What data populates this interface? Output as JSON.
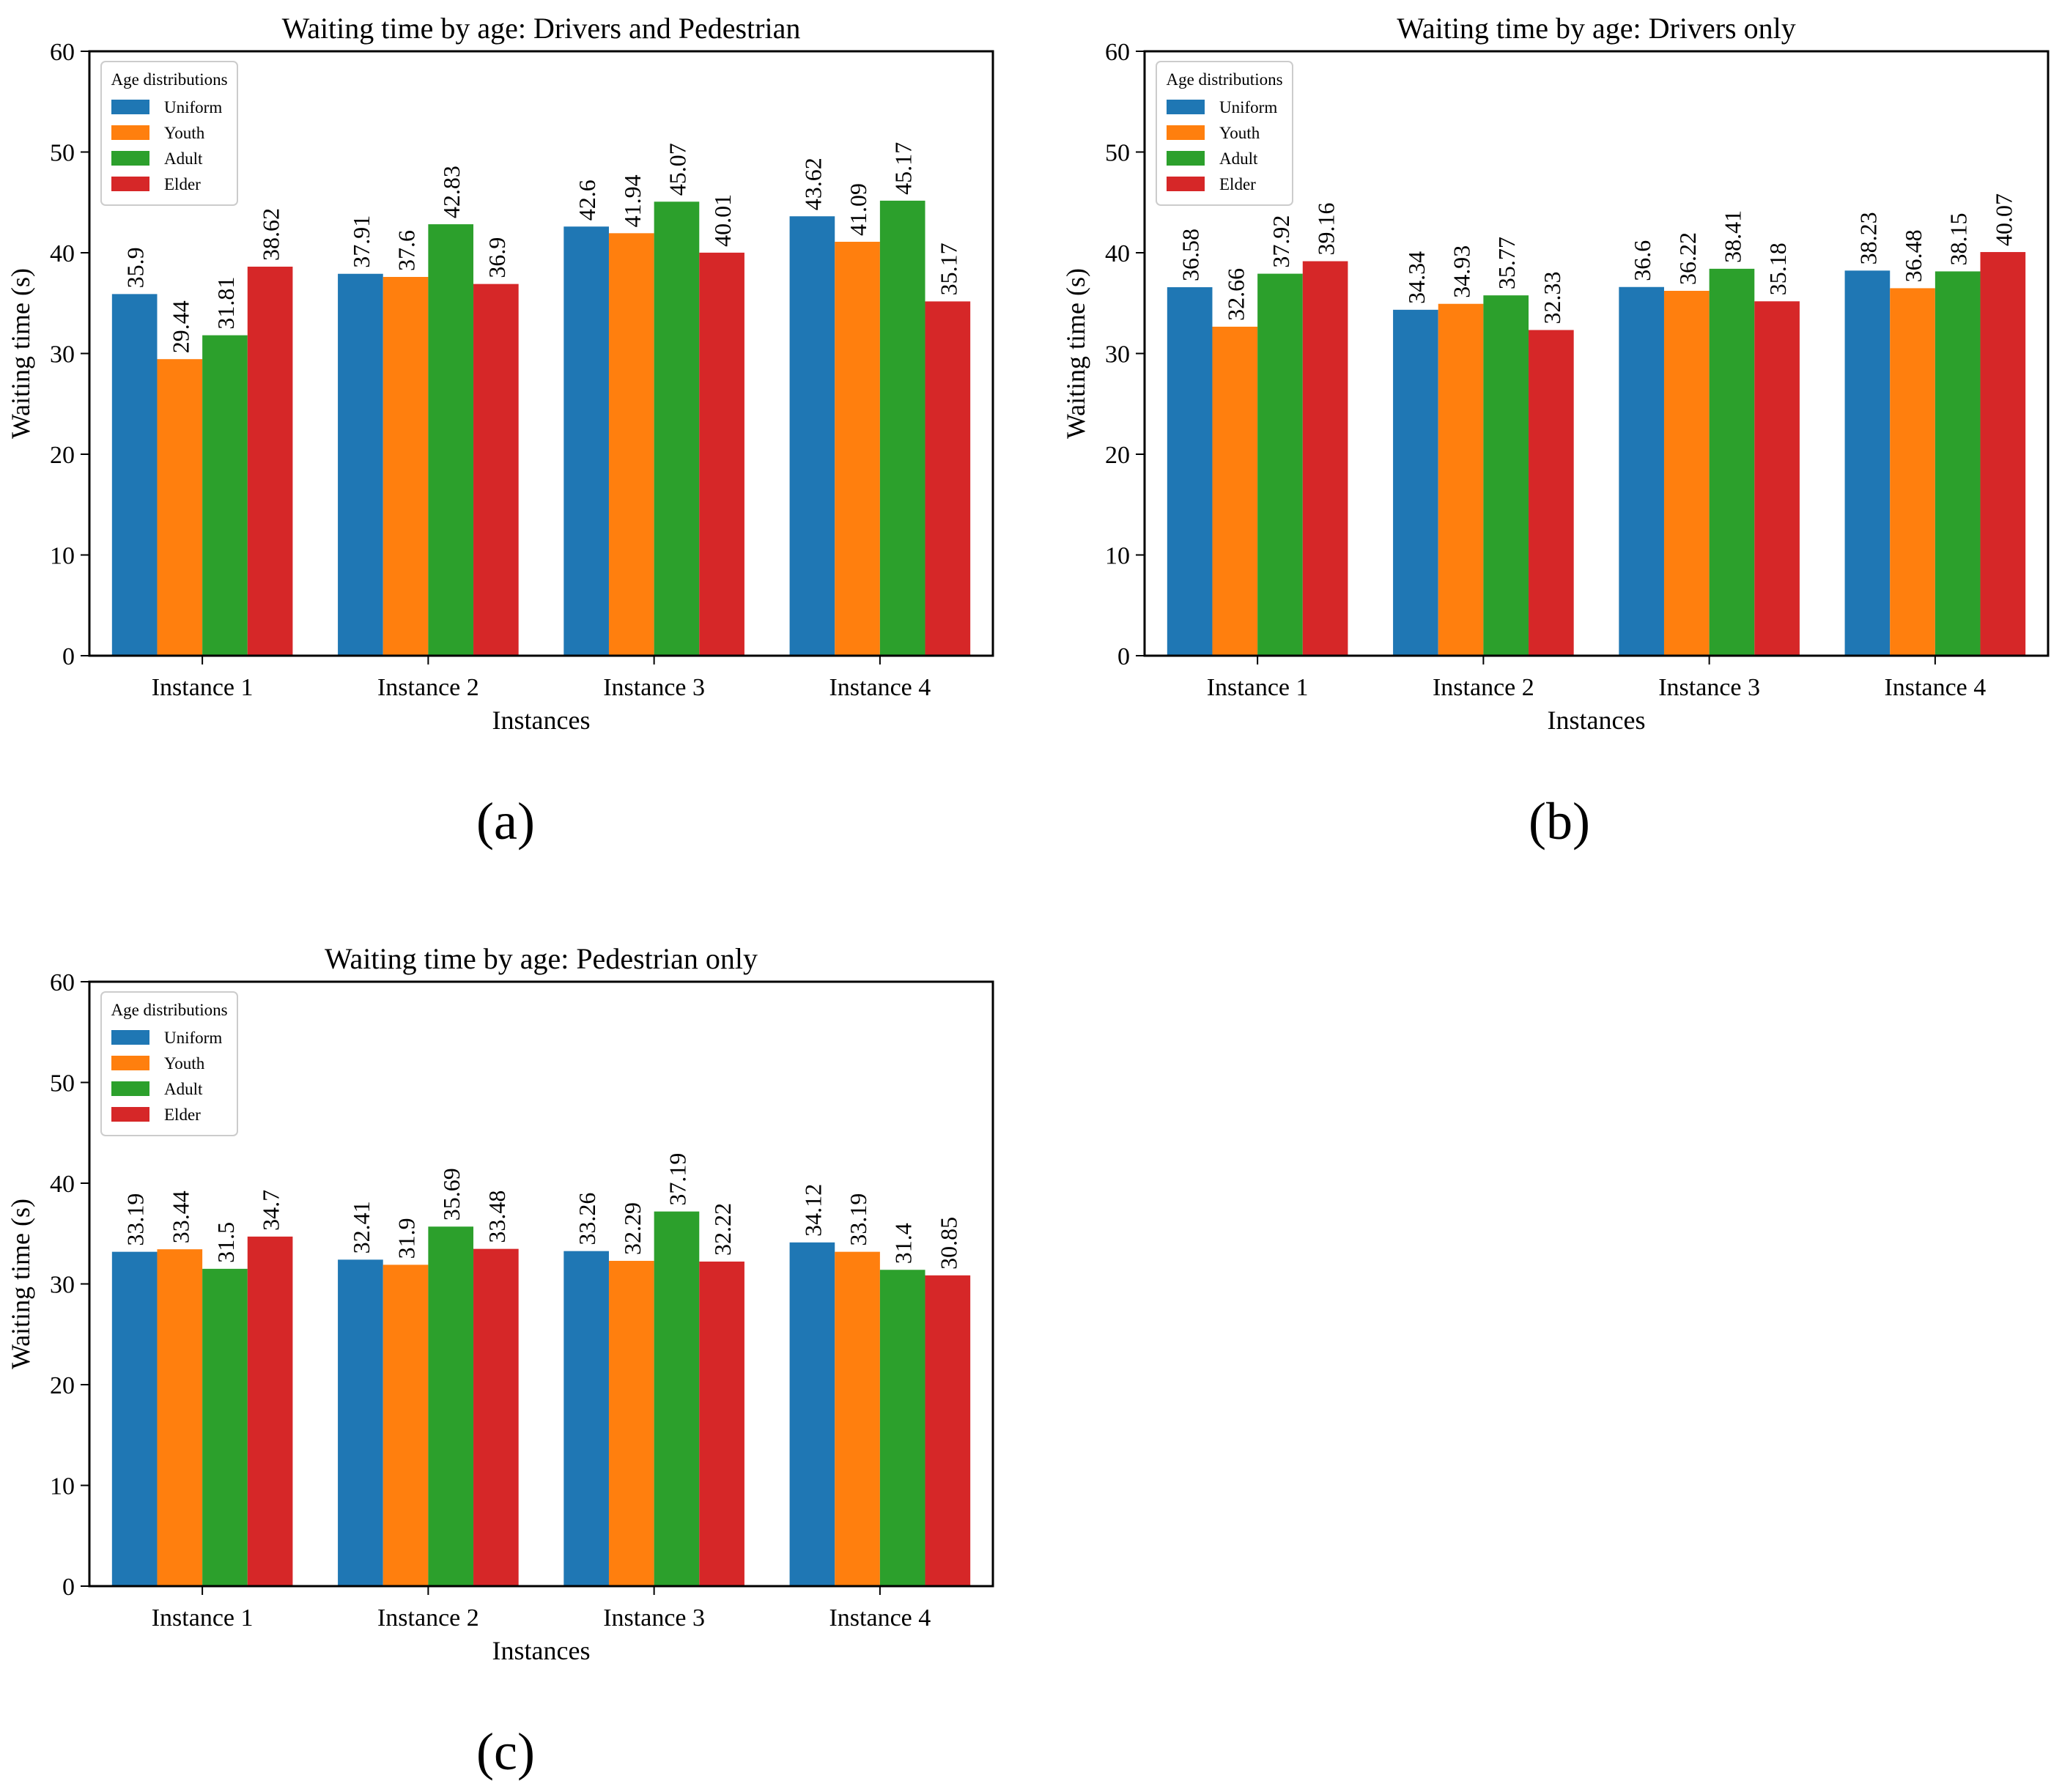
{
  "colors": {
    "Uniform": "#1f77b4",
    "Youth": "#ff7f0e",
    "Adult": "#2ca02c",
    "Elder": "#d62728"
  },
  "chart_data": [
    {
      "type": "bar",
      "panel_label": "(a)",
      "title": "Waiting time by age: Drivers and Pedestrian",
      "xlabel": "Instances",
      "ylabel": "Waiting time (s)",
      "ylim": [
        0,
        60
      ],
      "yticks": [
        0,
        10,
        20,
        30,
        40,
        50,
        60
      ],
      "legend_title": "Age distributions",
      "legend_position": "top-left",
      "categories": [
        "Instance 1",
        "Instance 2",
        "Instance 3",
        "Instance 4"
      ],
      "series": [
        {
          "name": "Uniform",
          "values": [
            35.9,
            37.91,
            42.6,
            43.62
          ],
          "labels": [
            "35.9",
            "37.91",
            "42.6",
            "43.62"
          ]
        },
        {
          "name": "Youth",
          "values": [
            29.44,
            37.6,
            41.94,
            41.09
          ],
          "labels": [
            "29.44",
            "37.6",
            "41.94",
            "41.09"
          ]
        },
        {
          "name": "Adult",
          "values": [
            31.81,
            42.83,
            45.07,
            45.17
          ],
          "labels": [
            "31.81",
            "42.83",
            "45.07",
            "45.17"
          ]
        },
        {
          "name": "Elder",
          "values": [
            38.62,
            36.9,
            40.01,
            35.17
          ],
          "labels": [
            "38.62",
            "36.9",
            "40.01",
            "35.17"
          ]
        }
      ]
    },
    {
      "type": "bar",
      "panel_label": "(b)",
      "title": "Waiting time by age: Drivers only",
      "xlabel": "Instances",
      "ylabel": "Waiting time (s)",
      "ylim": [
        0,
        60
      ],
      "yticks": [
        0,
        10,
        20,
        30,
        40,
        50,
        60
      ],
      "legend_title": "Age distributions",
      "legend_position": "top-left",
      "categories": [
        "Instance 1",
        "Instance 2",
        "Instance 3",
        "Instance 4"
      ],
      "series": [
        {
          "name": "Uniform",
          "values": [
            36.58,
            34.34,
            36.6,
            38.23
          ],
          "labels": [
            "36.58",
            "34.34",
            "36.6",
            "38.23"
          ]
        },
        {
          "name": "Youth",
          "values": [
            32.66,
            34.93,
            36.22,
            36.48
          ],
          "labels": [
            "32.66",
            "34.93",
            "36.22",
            "36.48"
          ]
        },
        {
          "name": "Adult",
          "values": [
            37.92,
            35.77,
            38.41,
            38.15
          ],
          "labels": [
            "37.92",
            "35.77",
            "38.41",
            "38.15"
          ]
        },
        {
          "name": "Elder",
          "values": [
            39.16,
            32.33,
            35.18,
            40.07
          ],
          "labels": [
            "39.16",
            "32.33",
            "35.18",
            "40.07"
          ]
        }
      ]
    },
    {
      "type": "bar",
      "panel_label": "(c)",
      "title": "Waiting time by age: Pedestrian only",
      "xlabel": "Instances",
      "ylabel": "Waiting time (s)",
      "ylim": [
        0,
        60
      ],
      "yticks": [
        0,
        10,
        20,
        30,
        40,
        50,
        60
      ],
      "legend_title": "Age distributions",
      "legend_position": "top-left",
      "categories": [
        "Instance 1",
        "Instance 2",
        "Instance 3",
        "Instance 4"
      ],
      "series": [
        {
          "name": "Uniform",
          "values": [
            33.19,
            32.41,
            33.26,
            34.12
          ],
          "labels": [
            "33.19",
            "32.41",
            "33.26",
            "34.12"
          ]
        },
        {
          "name": "Youth",
          "values": [
            33.44,
            31.9,
            32.29,
            33.19
          ],
          "labels": [
            "33.44",
            "31.9",
            "32.29",
            "33.19"
          ]
        },
        {
          "name": "Adult",
          "values": [
            31.5,
            35.69,
            37.19,
            31.4
          ],
          "labels": [
            "31.5",
            "35.69",
            "37.19",
            "31.4"
          ]
        },
        {
          "name": "Elder",
          "values": [
            34.7,
            33.48,
            32.22,
            30.85
          ],
          "labels": [
            "34.7",
            "33.48",
            "32.22",
            "30.85"
          ]
        }
      ]
    }
  ]
}
